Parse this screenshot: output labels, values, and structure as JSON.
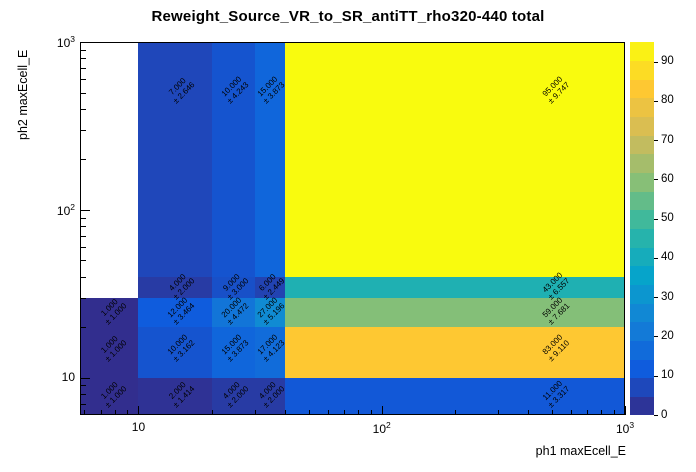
{
  "chart_data": {
    "type": "heatmap",
    "title": "Reweight_Source_VR_to_SR_antiTT_rho320-440 total",
    "xlabel": "ph1 maxEcell_E",
    "ylabel": "ph2 maxEcell_E",
    "x_scale": "log",
    "y_scale": "log",
    "x_range": [
      5.75,
      1000
    ],
    "y_range": [
      6.0,
      1000
    ],
    "z_range": [
      0,
      95
    ],
    "x_bin_edges": [
      5.75,
      10,
      20,
      30,
      40,
      1000
    ],
    "y_bin_edges": [
      6.0,
      10,
      20,
      30,
      40,
      1000
    ],
    "rows_order": "bottom_to_top",
    "values": [
      [
        1,
        2,
        4,
        4,
        11
      ],
      [
        1,
        10,
        15,
        17,
        83
      ],
      [
        1,
        12,
        20,
        27,
        59
      ],
      [
        null,
        4,
        9,
        6,
        43
      ],
      [
        null,
        7,
        10,
        15,
        95
      ]
    ],
    "errors": [
      [
        1.0,
        1.414,
        2.0,
        2.0,
        3.317
      ],
      [
        1.0,
        3.162,
        3.873,
        4.123,
        9.11
      ],
      [
        1.0,
        3.464,
        4.472,
        5.196,
        7.681
      ],
      [
        null,
        2.0,
        3.0,
        2.449,
        6.557
      ],
      [
        null,
        2.646,
        4.243,
        3.873,
        9.747
      ]
    ],
    "value_format_decimals": 3,
    "plus_minus": "±",
    "x_ticks": [
      {
        "value": 10,
        "base": "10",
        "exp": ""
      },
      {
        "value": 100,
        "base": "10",
        "exp": "2"
      },
      {
        "value": 1000,
        "base": "10",
        "exp": "3"
      }
    ],
    "y_ticks": [
      {
        "value": 10,
        "base": "10",
        "exp": ""
      },
      {
        "value": 100,
        "base": "10",
        "exp": "2"
      },
      {
        "value": 1000,
        "base": "10",
        "exp": "3"
      }
    ],
    "colorbar": {
      "ticks": [
        0,
        10,
        20,
        30,
        40,
        50,
        60,
        70,
        80,
        90
      ],
      "levels": 20
    },
    "palette": {
      "name": "root-bird",
      "anchors": [
        "#352a87",
        "#0f5cdd",
        "#1481d6",
        "#06a4ca",
        "#2eb7a4",
        "#87bf77",
        "#d1bb59",
        "#fec832",
        "#f9fb0e"
      ]
    },
    "grid": "off",
    "legend": "colorbar-right"
  }
}
